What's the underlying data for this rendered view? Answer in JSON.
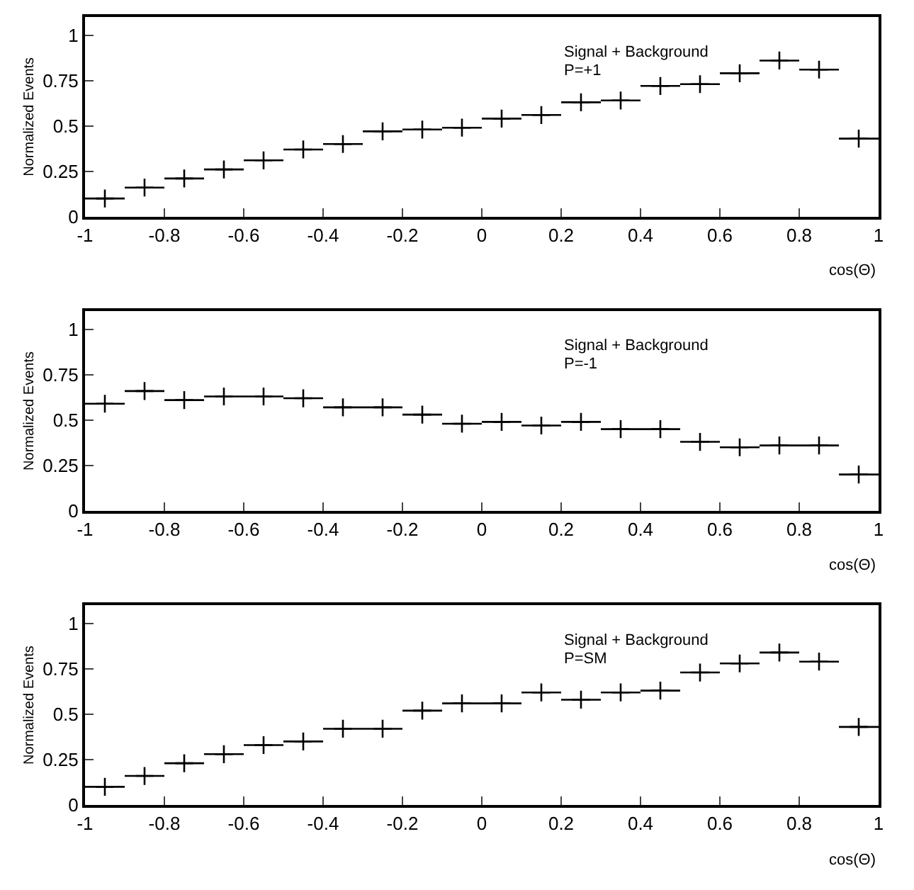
{
  "chart_data": [
    {
      "type": "scatter",
      "xlabel": "cos(Θ)",
      "ylabel": "Normalized Events",
      "annotations": [
        "Signal + Background",
        "P=+1"
      ],
      "x": [
        -0.95,
        -0.85,
        -0.75,
        -0.65,
        -0.55,
        -0.45,
        -0.35,
        -0.25,
        -0.15,
        -0.05,
        0.05,
        0.15,
        0.25,
        0.35,
        0.45,
        0.55,
        0.65,
        0.75,
        0.85,
        0.95
      ],
      "series": [
        {
          "color": "#000000",
          "values": [
            0.1,
            0.16,
            0.21,
            0.26,
            0.31,
            0.37,
            0.4,
            0.47,
            0.48,
            0.49,
            0.54,
            0.56,
            0.63,
            0.64,
            0.72,
            0.73,
            0.79,
            0.86,
            0.81,
            0.43
          ],
          "xerrors": [
            0.05,
            0.05,
            0.05,
            0.05,
            0.05,
            0.05,
            0.05,
            0.05,
            0.05,
            0.05,
            0.05,
            0.05,
            0.05,
            0.05,
            0.05,
            0.05,
            0.05,
            0.05,
            0.05,
            0.05
          ]
        }
      ],
      "xlim": [
        -1,
        1
      ],
      "xticks": [
        -1,
        -0.8,
        -0.6,
        -0.4,
        -0.2,
        0,
        0.2,
        0.4,
        0.6,
        0.8,
        1
      ],
      "ylim": [
        0,
        1.1
      ],
      "yticks": [
        0,
        0.25,
        0.5,
        0.75,
        1
      ],
      "marker": "cross"
    },
    {
      "type": "scatter",
      "xlabel": "cos(Θ)",
      "ylabel": "Normalized Events",
      "annotations": [
        "Signal + Background",
        "P=-1"
      ],
      "x": [
        -0.95,
        -0.85,
        -0.75,
        -0.65,
        -0.55,
        -0.45,
        -0.35,
        -0.25,
        -0.15,
        -0.05,
        0.05,
        0.15,
        0.25,
        0.35,
        0.45,
        0.55,
        0.65,
        0.75,
        0.85,
        0.95
      ],
      "series": [
        {
          "color": "#000000",
          "values": [
            0.59,
            0.66,
            0.61,
            0.63,
            0.63,
            0.62,
            0.57,
            0.57,
            0.53,
            0.48,
            0.49,
            0.47,
            0.49,
            0.45,
            0.45,
            0.38,
            0.35,
            0.36,
            0.36,
            0.2
          ],
          "xerrors": [
            0.05,
            0.05,
            0.05,
            0.05,
            0.05,
            0.05,
            0.05,
            0.05,
            0.05,
            0.05,
            0.05,
            0.05,
            0.05,
            0.05,
            0.05,
            0.05,
            0.05,
            0.05,
            0.05,
            0.05
          ]
        }
      ],
      "xlim": [
        -1,
        1
      ],
      "xticks": [
        -1,
        -0.8,
        -0.6,
        -0.4,
        -0.2,
        0,
        0.2,
        0.4,
        0.6,
        0.8,
        1
      ],
      "ylim": [
        0,
        1.1
      ],
      "yticks": [
        0,
        0.25,
        0.5,
        0.75,
        1
      ],
      "marker": "cross"
    },
    {
      "type": "scatter",
      "xlabel": "cos(Θ)",
      "ylabel": "Normalized Events",
      "annotations": [
        "Signal + Background",
        "P=SM"
      ],
      "x": [
        -0.95,
        -0.85,
        -0.75,
        -0.65,
        -0.55,
        -0.45,
        -0.35,
        -0.25,
        -0.15,
        -0.05,
        0.05,
        0.15,
        0.25,
        0.35,
        0.45,
        0.55,
        0.65,
        0.75,
        0.85,
        0.95
      ],
      "series": [
        {
          "color": "#000000",
          "values": [
            0.1,
            0.16,
            0.23,
            0.28,
            0.33,
            0.35,
            0.42,
            0.42,
            0.52,
            0.56,
            0.56,
            0.62,
            0.58,
            0.62,
            0.63,
            0.73,
            0.78,
            0.84,
            0.79,
            0.43
          ],
          "xerrors": [
            0.05,
            0.05,
            0.05,
            0.05,
            0.05,
            0.05,
            0.05,
            0.05,
            0.05,
            0.05,
            0.05,
            0.05,
            0.05,
            0.05,
            0.05,
            0.05,
            0.05,
            0.05,
            0.05,
            0.05
          ]
        }
      ],
      "xlim": [
        -1,
        1
      ],
      "xticks": [
        -1,
        -0.8,
        -0.6,
        -0.4,
        -0.2,
        0,
        0.2,
        0.4,
        0.6,
        0.8,
        1
      ],
      "ylim": [
        0,
        1.1
      ],
      "yticks": [
        0,
        0.25,
        0.5,
        0.75,
        1
      ],
      "marker": "cross"
    }
  ]
}
